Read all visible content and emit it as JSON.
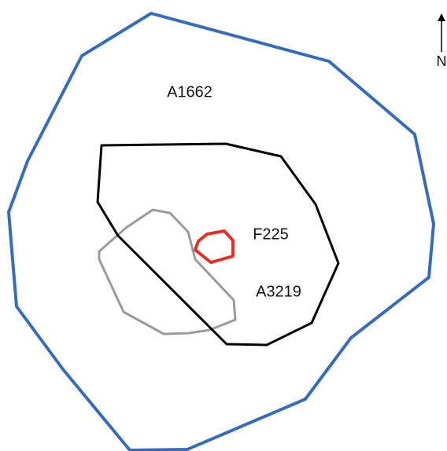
{
  "labels": {
    "outer": "A1662",
    "inner_small": "F225",
    "inner": "A3219"
  },
  "north": "N"
}
